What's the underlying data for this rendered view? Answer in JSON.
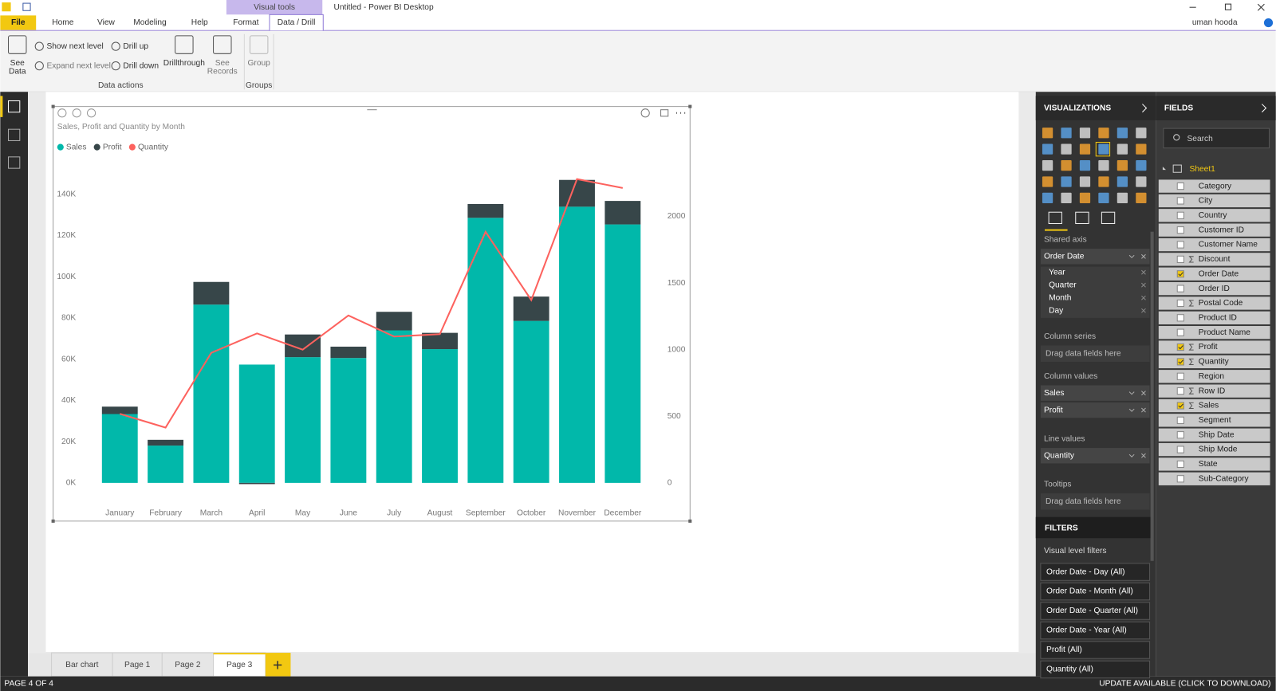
{
  "titlebar": {
    "title": "Untitled - Power BI Desktop",
    "context_tab": "Visual tools",
    "user": "uman hooda"
  },
  "ribbon_tabs": [
    "File",
    "Home",
    "View",
    "Modeling",
    "Help",
    "Format",
    "Data / Drill"
  ],
  "ribbon": {
    "buttons": [
      {
        "lines": [
          "See",
          "Data"
        ]
      },
      {
        "lines": [
          "Show next level"
        ]
      },
      {
        "lines": [
          "Expand next level"
        ]
      },
      {
        "lines": [
          "Drill up"
        ]
      },
      {
        "lines": [
          "Drill down"
        ]
      },
      {
        "lines": [
          "Drillthrough"
        ]
      },
      {
        "lines": [
          "See",
          "Records"
        ]
      },
      {
        "lines": [
          "Group"
        ]
      }
    ],
    "groups": [
      "Data actions",
      "Groups"
    ]
  },
  "chart_data": {
    "type": "bar",
    "stacked": true,
    "title": "Sales, Profit and Quantity by Month",
    "categories": [
      "January",
      "February",
      "March",
      "April",
      "May",
      "June",
      "July",
      "August",
      "September",
      "October",
      "November",
      "December"
    ],
    "series": [
      {
        "name": "Sales",
        "color": "#01b8aa",
        "values": [
          33400,
          18100,
          86500,
          57400,
          61000,
          60600,
          74000,
          64900,
          128600,
          78600,
          134000,
          125400
        ]
      },
      {
        "name": "Profit",
        "color": "#374649",
        "values": [
          3600,
          2800,
          11000,
          -600,
          11000,
          5500,
          9000,
          7900,
          6700,
          11800,
          13000,
          11400
        ]
      },
      {
        "name": "Quantity",
        "color": "#fd625e",
        "type": "line",
        "axis": "y2",
        "values": [
          518,
          415,
          976,
          1122,
          1000,
          1256,
          1098,
          1116,
          1884,
          1372,
          2280,
          2213
        ]
      }
    ],
    "ylim": [
      0,
      150000
    ],
    "yticks": [
      {
        "value": 0,
        "label": "0K"
      },
      {
        "value": 20000,
        "label": "20K"
      },
      {
        "value": 40000,
        "label": "40K"
      },
      {
        "value": 60000,
        "label": "60K"
      },
      {
        "value": 80000,
        "label": "80K"
      },
      {
        "value": 100000,
        "label": "100K"
      },
      {
        "value": 120000,
        "label": "120K"
      },
      {
        "value": 140000,
        "label": "140K"
      }
    ],
    "y2lim": [
      0,
      2320
    ],
    "y2ticks": [
      0,
      500,
      1000,
      1500,
      2000
    ],
    "grid": false,
    "legend": "top-left"
  },
  "visualizations": {
    "title": "VISUALIZATIONS",
    "wells": [
      {
        "label": "Shared axis",
        "fields": [
          "Order Date"
        ],
        "hierarchy": [
          "Year",
          "Quarter",
          "Month",
          "Day"
        ]
      },
      {
        "label": "Column series",
        "placeholder": "Drag data fields here"
      },
      {
        "label": "Column values",
        "fields": [
          "Sales",
          "Profit"
        ]
      },
      {
        "label": "Line values",
        "fields": [
          "Quantity"
        ]
      },
      {
        "label": "Tooltips",
        "placeholder": "Drag data fields here"
      }
    ]
  },
  "filters": {
    "title": "FILTERS",
    "subtitle": "Visual level filters",
    "items": [
      "Order Date - Day (All)",
      "Order Date - Month (All)",
      "Order Date - Quarter (All)",
      "Order Date - Year (All)",
      "Profit (All)",
      "Quantity (All)"
    ]
  },
  "fields": {
    "title": "FIELDS",
    "search": "Search",
    "table": "Sheet1",
    "items": [
      {
        "name": "Category",
        "checked": false,
        "sum": false
      },
      {
        "name": "City",
        "checked": false,
        "sum": false
      },
      {
        "name": "Country",
        "checked": false,
        "sum": false
      },
      {
        "name": "Customer ID",
        "checked": false,
        "sum": false
      },
      {
        "name": "Customer Name",
        "checked": false,
        "sum": false
      },
      {
        "name": "Discount",
        "checked": false,
        "sum": true
      },
      {
        "name": "Order Date",
        "checked": true,
        "sum": false
      },
      {
        "name": "Order ID",
        "checked": false,
        "sum": false
      },
      {
        "name": "Postal Code",
        "checked": false,
        "sum": true
      },
      {
        "name": "Product ID",
        "checked": false,
        "sum": false
      },
      {
        "name": "Product Name",
        "checked": false,
        "sum": false
      },
      {
        "name": "Profit",
        "checked": true,
        "sum": true
      },
      {
        "name": "Quantity",
        "checked": true,
        "sum": true
      },
      {
        "name": "Region",
        "checked": false,
        "sum": false
      },
      {
        "name": "Row ID",
        "checked": false,
        "sum": true
      },
      {
        "name": "Sales",
        "checked": true,
        "sum": true
      },
      {
        "name": "Segment",
        "checked": false,
        "sum": false
      },
      {
        "name": "Ship Date",
        "checked": false,
        "sum": false
      },
      {
        "name": "Ship Mode",
        "checked": false,
        "sum": false
      },
      {
        "name": "State",
        "checked": false,
        "sum": false
      },
      {
        "name": "Sub-Category",
        "checked": false,
        "sum": false
      }
    ]
  },
  "pages": {
    "tabs": [
      "Bar chart",
      "Page 1",
      "Page 2",
      "Page 3"
    ],
    "active": 3
  },
  "status": {
    "page": "PAGE 4 OF 4",
    "update": "UPDATE AVAILABLE (CLICK TO DOWNLOAD)"
  }
}
